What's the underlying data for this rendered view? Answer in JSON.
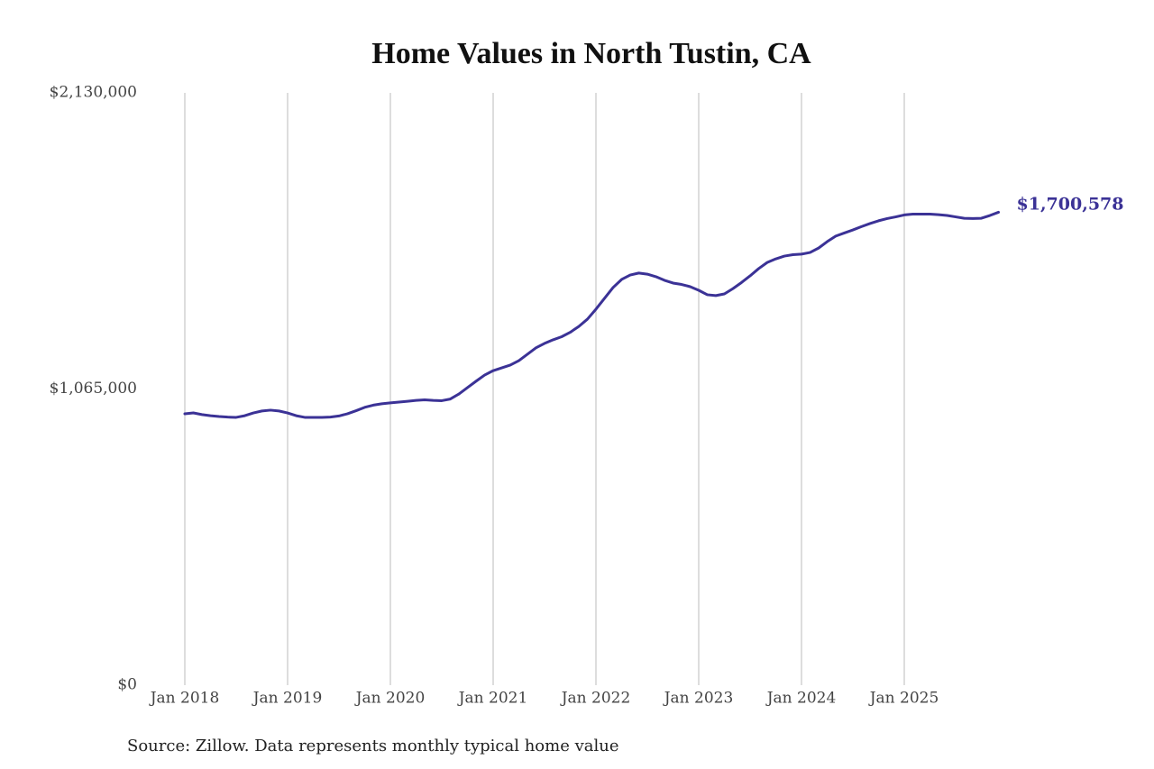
{
  "chart_data": {
    "type": "line",
    "title": "Home Values in North Tustin, CA",
    "source": "Source: Zillow. Data represents monthly typical home value",
    "x": [
      "2018-01",
      "2018-02",
      "2018-03",
      "2018-04",
      "2018-05",
      "2018-06",
      "2018-07",
      "2018-08",
      "2018-09",
      "2018-10",
      "2018-11",
      "2018-12",
      "2019-01",
      "2019-02",
      "2019-03",
      "2019-04",
      "2019-05",
      "2019-06",
      "2019-07",
      "2019-08",
      "2019-09",
      "2019-10",
      "2019-11",
      "2019-12",
      "2020-01",
      "2020-02",
      "2020-03",
      "2020-04",
      "2020-05",
      "2020-06",
      "2020-07",
      "2020-08",
      "2020-09",
      "2020-10",
      "2020-11",
      "2020-12",
      "2021-01",
      "2021-02",
      "2021-03",
      "2021-04",
      "2021-05",
      "2021-06",
      "2021-07",
      "2021-08",
      "2021-09",
      "2021-10",
      "2021-11",
      "2021-12",
      "2022-01",
      "2022-02",
      "2022-03",
      "2022-04",
      "2022-05",
      "2022-06",
      "2022-07",
      "2022-08",
      "2022-09",
      "2022-10",
      "2022-11",
      "2022-12",
      "2023-01",
      "2023-02",
      "2023-03",
      "2023-04",
      "2023-05",
      "2023-06",
      "2023-07",
      "2023-08",
      "2023-09",
      "2023-10",
      "2023-11",
      "2023-12",
      "2024-01",
      "2024-02",
      "2024-03",
      "2024-04",
      "2024-05",
      "2024-06",
      "2024-07",
      "2024-08",
      "2024-09",
      "2024-10",
      "2024-11",
      "2024-12",
      "2025-01",
      "2025-02",
      "2025-03",
      "2025-04",
      "2025-05",
      "2025-06",
      "2025-07",
      "2025-08",
      "2025-09",
      "2025-10",
      "2025-11",
      "2025-12"
    ],
    "series": [
      {
        "name": "North Tustin",
        "color": "#3b3296",
        "values": [
          976000,
          979000,
          973000,
          969000,
          966000,
          964000,
          963000,
          969000,
          979000,
          986000,
          989000,
          986000,
          979000,
          969000,
          963000,
          963000,
          963000,
          964000,
          968000,
          976000,
          987000,
          999000,
          1007000,
          1012000,
          1015000,
          1018000,
          1021000,
          1024000,
          1026000,
          1024000,
          1023000,
          1029000,
          1047000,
          1070000,
          1093000,
          1115000,
          1131000,
          1141000,
          1151000,
          1167000,
          1190000,
          1213000,
          1229000,
          1242000,
          1253000,
          1269000,
          1290000,
          1316000,
          1352000,
          1391000,
          1430000,
          1459000,
          1475000,
          1482000,
          1478000,
          1469000,
          1456000,
          1446000,
          1441000,
          1433000,
          1420000,
          1404000,
          1401000,
          1407000,
          1426000,
          1448000,
          1472000,
          1498000,
          1520000,
          1533000,
          1543000,
          1548000,
          1550000,
          1556000,
          1572000,
          1595000,
          1615000,
          1626000,
          1637000,
          1649000,
          1660000,
          1670000,
          1678000,
          1684000,
          1691000,
          1694000,
          1694000,
          1694000,
          1692000,
          1689000,
          1684000,
          1679000,
          1678000,
          1679000,
          1689000,
          1700578
        ],
        "value_labels": [
          null,
          null,
          null,
          null,
          null,
          null,
          null,
          null,
          null,
          null,
          null,
          null,
          null,
          null,
          null,
          null,
          null,
          null,
          null,
          null,
          null,
          null,
          null,
          null,
          null,
          null,
          null,
          null,
          null,
          null,
          null,
          null,
          null,
          null,
          null,
          null,
          null,
          null,
          null,
          null,
          null,
          null,
          null,
          null,
          null,
          null,
          null,
          null,
          null,
          null,
          null,
          null,
          null,
          null,
          null,
          null,
          null,
          null,
          null,
          null,
          null,
          null,
          null,
          null,
          null,
          null,
          null,
          null,
          null,
          null,
          null,
          null,
          null,
          null,
          null,
          null,
          null,
          null,
          null,
          null,
          null,
          null,
          null,
          null,
          null,
          null,
          null,
          null,
          null,
          null,
          null,
          null,
          null,
          null,
          null,
          "$1,700,578"
        ]
      }
    ],
    "ylim": [
      0,
      2130000
    ],
    "yticks": [
      {
        "value": 0,
        "label": "$0"
      },
      {
        "value": 1065000,
        "label": "$1,065,000"
      },
      {
        "value": 2130000,
        "label": "$2,130,000"
      }
    ],
    "xticks": [
      {
        "value": "2018-01",
        "label": "Jan 2018"
      },
      {
        "value": "2019-01",
        "label": "Jan 2019"
      },
      {
        "value": "2020-01",
        "label": "Jan 2020"
      },
      {
        "value": "2021-01",
        "label": "Jan 2021"
      },
      {
        "value": "2022-01",
        "label": "Jan 2022"
      },
      {
        "value": "2023-01",
        "label": "Jan 2023"
      },
      {
        "value": "2024-01",
        "label": "Jan 2024"
      },
      {
        "value": "2025-01",
        "label": "Jan 2025"
      }
    ],
    "grid": true
  }
}
